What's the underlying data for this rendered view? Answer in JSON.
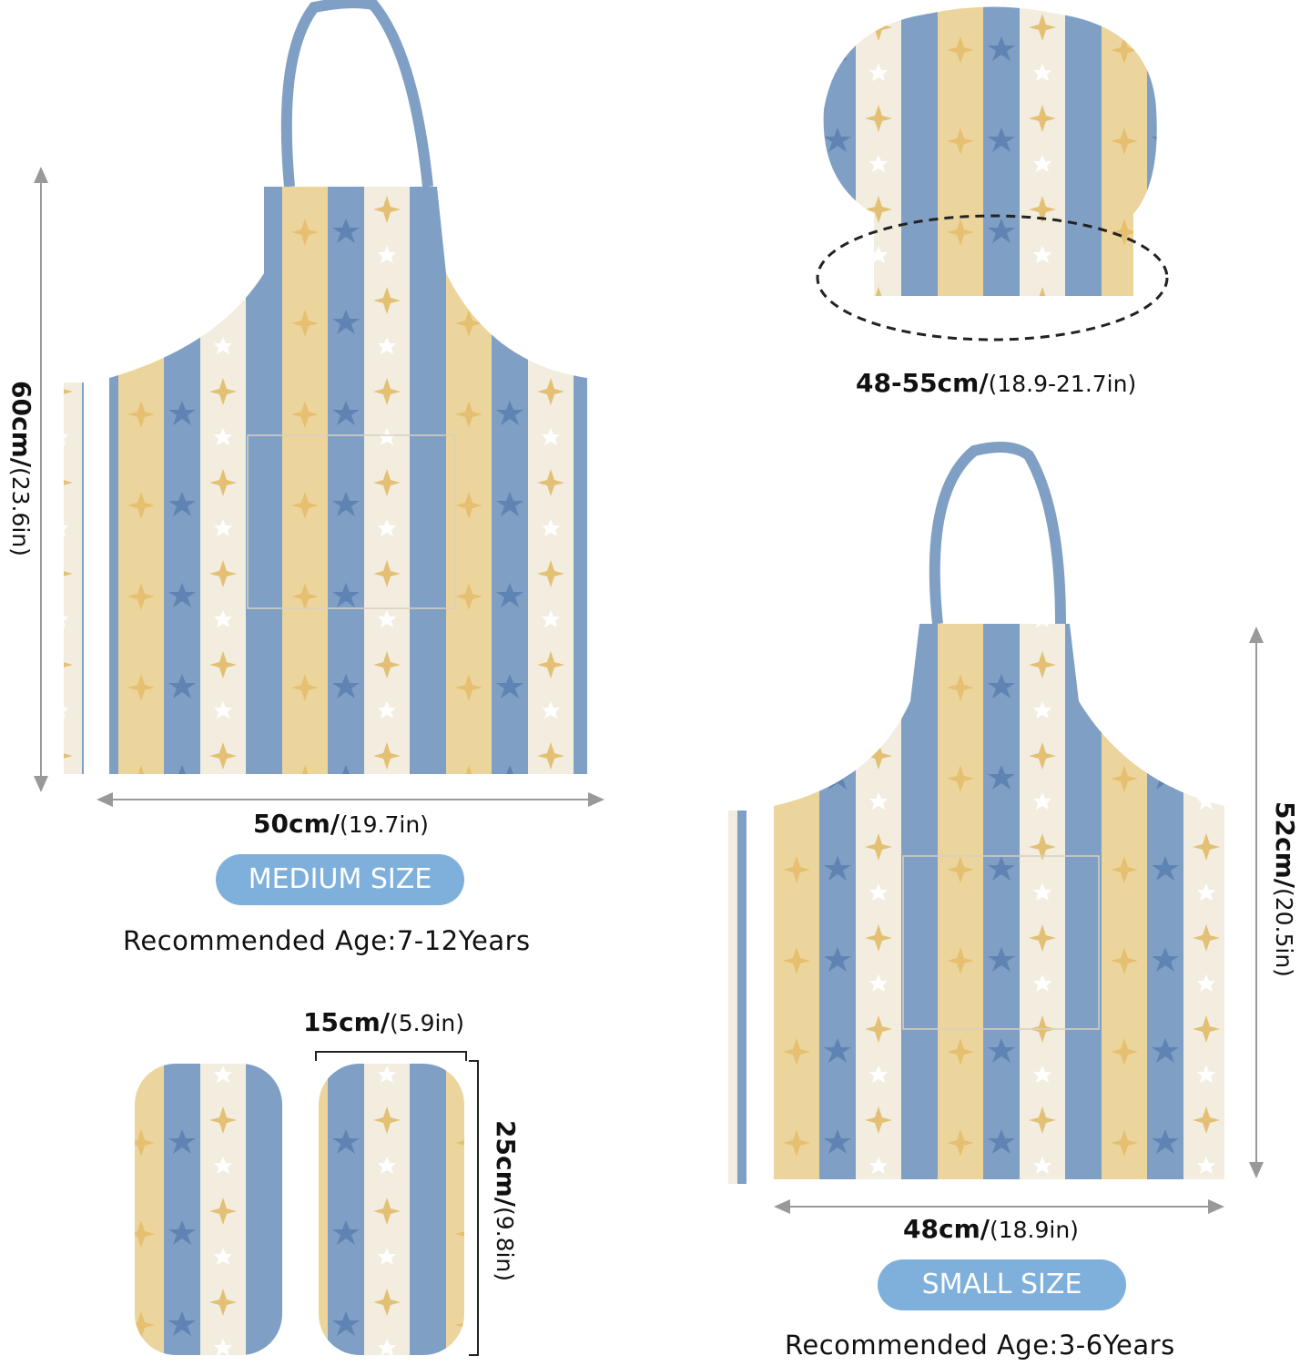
{
  "colors": {
    "blue": "#7f9fc4",
    "cream": "#f3ede0",
    "yellow": "#ecd59c",
    "pill": "#7fb0dc",
    "arrow": "#999999"
  },
  "medium": {
    "height_cm": "60cm/",
    "height_in": "(23.6in)",
    "width_cm": "50cm/",
    "width_in": "(19.7in)",
    "size_label": "MEDIUM SIZE",
    "age": "Recommended Age:7-12Years"
  },
  "hat": {
    "circ_cm": "48-55cm/",
    "circ_in": "(18.9-21.7in)"
  },
  "small": {
    "height_cm": "52cm/",
    "height_in": "(20.5in)",
    "width_cm": "48cm/",
    "width_in": "(18.9in)",
    "size_label": "SMALL SIZE",
    "age": "Recommended Age:3-6Years"
  },
  "sleeves": {
    "width_cm": "15cm/",
    "width_in": "(5.9in)",
    "height_cm": "25cm/",
    "height_in": "(9.8in)"
  }
}
